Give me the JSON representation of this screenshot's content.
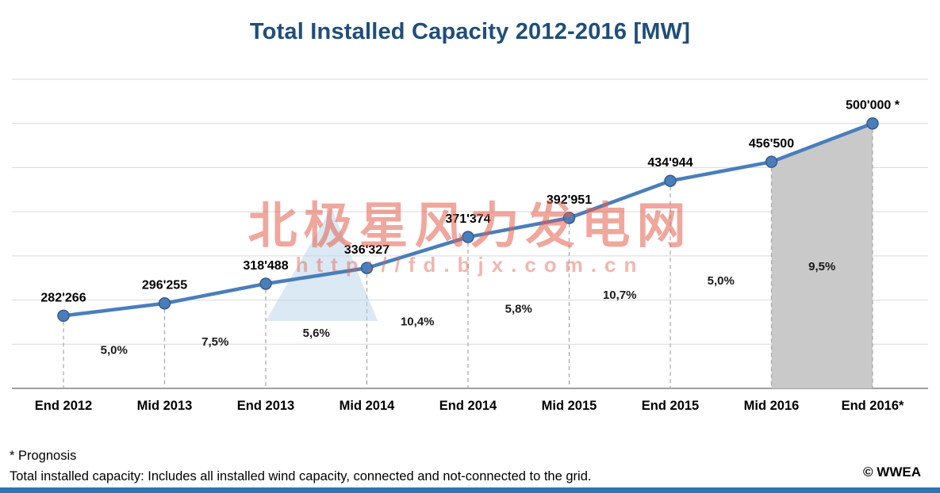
{
  "chart_data": {
    "type": "line",
    "title": "Total Installed Capacity 2012-2016 [MW]",
    "categories": [
      "End 2012",
      "Mid 2013",
      "End 2013",
      "Mid 2014",
      "End 2014",
      "Mid 2015",
      "End 2015",
      "Mid 2016",
      "End 2016*"
    ],
    "values": [
      282266,
      296255,
      318488,
      336327,
      371374,
      392951,
      434944,
      456500,
      500000
    ],
    "point_labels": [
      "282'266",
      "296'255",
      "318'488",
      "336'327",
      "371'374",
      "392'951",
      "434'944",
      "456'500",
      "500'000 *"
    ],
    "growth_labels": [
      "5,0%",
      "7,5%",
      "5,6%",
      "10,4%",
      "5,8%",
      "10,7%",
      "5,0%",
      "9,5%"
    ],
    "xlabel": "",
    "ylabel": "",
    "ylim": [
      200000,
      550000
    ],
    "grid_step": 50000,
    "grid": true,
    "legend": false,
    "line_color": "#4a7ebb",
    "marker_color": "#4a7ebb",
    "marker_edge_color": "#38598c",
    "gridline_color": "#d9d9d9",
    "axis_color": "#808080",
    "prognosis_shade_from": "Mid 2016",
    "prognosis_shade_to": "End 2016*",
    "shade_color": "#c9c9c9"
  },
  "footnotes": {
    "prognosis": "* Prognosis",
    "definition": "Total installed capacity: Includes all installed wind capacity, connected and not-connected to the grid.",
    "copyright": "© WWEA"
  },
  "watermark": {
    "line1": "北极星风力发电网",
    "line2": "http://fd.bjx.com.cn",
    "color": "#e4604e"
  }
}
